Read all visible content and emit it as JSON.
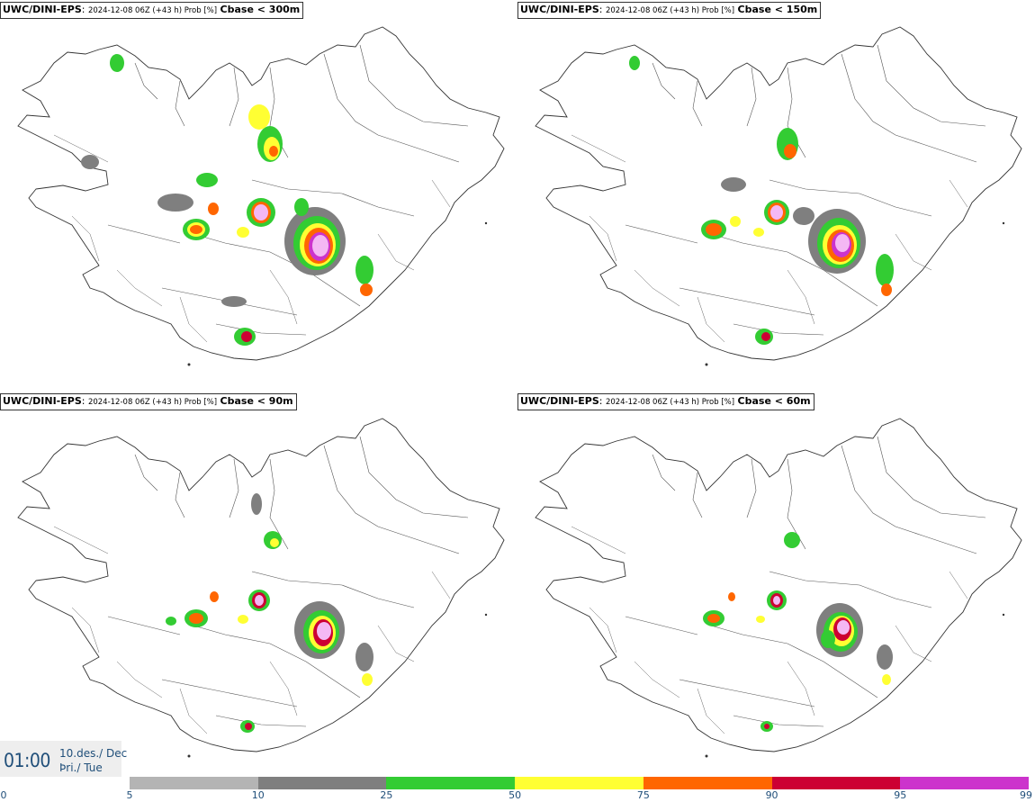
{
  "panels": [
    {
      "model": "UWC/DINI-EPS",
      "meta": "2024-12-08 06Z (+43 h) Prob [%]",
      "param": "Cbase < 300m"
    },
    {
      "model": "UWC/DINI-EPS",
      "meta": "2024-12-08 06Z (+43 h) Prob [%]",
      "param": "Cbase < 150m"
    },
    {
      "model": "UWC/DINI-EPS",
      "meta": "2024-12-08 06Z (+43 h) Prob [%]",
      "param": "Cbase < 90m"
    },
    {
      "model": "UWC/DINI-EPS",
      "meta": "2024-12-08 06Z (+43 h) Prob [%]",
      "param": "Cbase < 60m"
    }
  ],
  "time": {
    "clock": "01:00",
    "date_line1": "10.des./ Dec",
    "date_line2": "Þri./ Tue"
  },
  "legend": {
    "ticks": [
      "0",
      "5",
      "10",
      "25",
      "50",
      "75",
      "90",
      "95",
      "99"
    ],
    "colors": [
      "#b4b4b4",
      "#7f7f7f",
      "#33cc33",
      "#ffff33",
      "#ff6600",
      "#cc0033",
      "#cc33cc",
      "#f4b8f4"
    ]
  },
  "colors": {
    "p5": "#b4b4b4",
    "p10": "#7f7f7f",
    "p25": "#33cc33",
    "p50": "#ffff33",
    "p75": "#ff6600",
    "p90": "#cc0033",
    "p95": "#cc33cc",
    "p99": "#f4b8f4"
  }
}
